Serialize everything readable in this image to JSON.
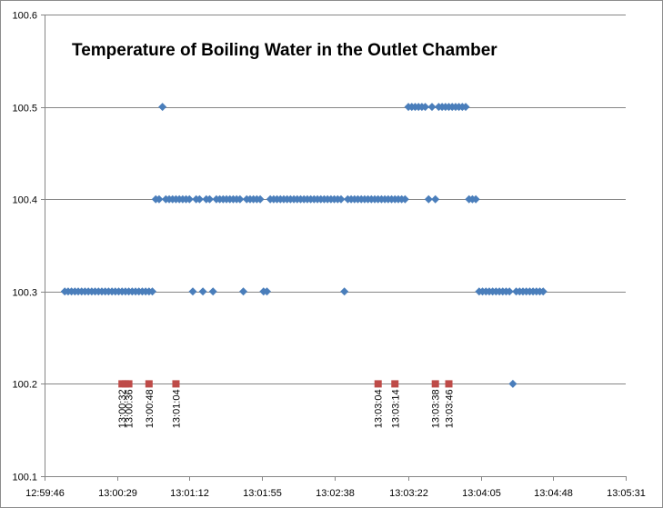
{
  "chart_data": {
    "type": "scatter",
    "title": "Temperature of Boiling Water in the Outlet Chamber",
    "xlabel": "",
    "ylabel": "",
    "x_axis_type": "time",
    "xlim": [
      "12:59:46",
      "13:05:31"
    ],
    "ylim": [
      100.1,
      100.6
    ],
    "x_tick_labels": [
      "12:59:46",
      "13:00:29",
      "13:01:12",
      "13:01:55",
      "13:02:38",
      "13:03:22",
      "13:04:05",
      "13:04:48",
      "13:05:31"
    ],
    "y_tick_labels": [
      "100.1",
      "100.2",
      "100.3",
      "100.4",
      "100.5",
      "100.6"
    ],
    "gridlines": "horizontal",
    "legend": "none",
    "colors": {
      "temperature": "#4a7ebb",
      "event": "#be4b48",
      "grid": "#868686"
    },
    "series": [
      {
        "marker": "diamond",
        "color": "#4a7ebb",
        "points": [
          [
            "12:59:58",
            100.3
          ],
          [
            "13:00:00",
            100.3
          ],
          [
            "13:00:02",
            100.3
          ],
          [
            "13:00:04",
            100.3
          ],
          [
            "13:00:06",
            100.3
          ],
          [
            "13:00:08",
            100.3
          ],
          [
            "13:00:10",
            100.3
          ],
          [
            "13:00:12",
            100.3
          ],
          [
            "13:00:14",
            100.3
          ],
          [
            "13:00:16",
            100.3
          ],
          [
            "13:00:18",
            100.3
          ],
          [
            "13:00:20",
            100.3
          ],
          [
            "13:00:22",
            100.3
          ],
          [
            "13:00:24",
            100.3
          ],
          [
            "13:00:26",
            100.3
          ],
          [
            "13:00:28",
            100.3
          ],
          [
            "13:00:30",
            100.3
          ],
          [
            "13:00:32",
            100.3
          ],
          [
            "13:00:34",
            100.3
          ],
          [
            "13:00:36",
            100.3
          ],
          [
            "13:00:38",
            100.3
          ],
          [
            "13:00:40",
            100.3
          ],
          [
            "13:00:42",
            100.3
          ],
          [
            "13:00:44",
            100.3
          ],
          [
            "13:00:46",
            100.3
          ],
          [
            "13:00:48",
            100.3
          ],
          [
            "13:00:50",
            100.3
          ],
          [
            "13:00:52",
            100.4
          ],
          [
            "13:00:54",
            100.4
          ],
          [
            "13:00:56",
            100.5
          ],
          [
            "13:00:58",
            100.4
          ],
          [
            "13:01:00",
            100.4
          ],
          [
            "13:01:02",
            100.4
          ],
          [
            "13:01:04",
            100.4
          ],
          [
            "13:01:06",
            100.4
          ],
          [
            "13:01:08",
            100.4
          ],
          [
            "13:01:10",
            100.4
          ],
          [
            "13:01:12",
            100.4
          ],
          [
            "13:01:14",
            100.3
          ],
          [
            "13:01:16",
            100.4
          ],
          [
            "13:01:18",
            100.4
          ],
          [
            "13:01:20",
            100.3
          ],
          [
            "13:01:22",
            100.4
          ],
          [
            "13:01:24",
            100.4
          ],
          [
            "13:01:26",
            100.3
          ],
          [
            "13:01:28",
            100.4
          ],
          [
            "13:01:30",
            100.4
          ],
          [
            "13:01:32",
            100.4
          ],
          [
            "13:01:34",
            100.4
          ],
          [
            "13:01:36",
            100.4
          ],
          [
            "13:01:38",
            100.4
          ],
          [
            "13:01:40",
            100.4
          ],
          [
            "13:01:42",
            100.4
          ],
          [
            "13:01:44",
            100.3
          ],
          [
            "13:01:46",
            100.4
          ],
          [
            "13:01:48",
            100.4
          ],
          [
            "13:01:50",
            100.4
          ],
          [
            "13:01:52",
            100.4
          ],
          [
            "13:01:54",
            100.4
          ],
          [
            "13:01:56",
            100.3
          ],
          [
            "13:01:58",
            100.3
          ],
          [
            "13:02:00",
            100.4
          ],
          [
            "13:02:02",
            100.4
          ],
          [
            "13:02:04",
            100.4
          ],
          [
            "13:02:06",
            100.4
          ],
          [
            "13:02:08",
            100.4
          ],
          [
            "13:02:10",
            100.4
          ],
          [
            "13:02:12",
            100.4
          ],
          [
            "13:02:14",
            100.4
          ],
          [
            "13:02:16",
            100.4
          ],
          [
            "13:02:18",
            100.4
          ],
          [
            "13:02:20",
            100.4
          ],
          [
            "13:02:22",
            100.4
          ],
          [
            "13:02:24",
            100.4
          ],
          [
            "13:02:26",
            100.4
          ],
          [
            "13:02:28",
            100.4
          ],
          [
            "13:02:30",
            100.4
          ],
          [
            "13:02:32",
            100.4
          ],
          [
            "13:02:34",
            100.4
          ],
          [
            "13:02:36",
            100.4
          ],
          [
            "13:02:38",
            100.4
          ],
          [
            "13:02:40",
            100.4
          ],
          [
            "13:02:42",
            100.4
          ],
          [
            "13:02:44",
            100.3
          ],
          [
            "13:02:46",
            100.4
          ],
          [
            "13:02:48",
            100.4
          ],
          [
            "13:02:50",
            100.4
          ],
          [
            "13:02:52",
            100.4
          ],
          [
            "13:02:54",
            100.4
          ],
          [
            "13:02:56",
            100.4
          ],
          [
            "13:02:58",
            100.4
          ],
          [
            "13:03:00",
            100.4
          ],
          [
            "13:03:02",
            100.4
          ],
          [
            "13:03:04",
            100.4
          ],
          [
            "13:03:06",
            100.4
          ],
          [
            "13:03:08",
            100.4
          ],
          [
            "13:03:10",
            100.4
          ],
          [
            "13:03:12",
            100.4
          ],
          [
            "13:03:14",
            100.4
          ],
          [
            "13:03:16",
            100.4
          ],
          [
            "13:03:18",
            100.4
          ],
          [
            "13:03:20",
            100.4
          ],
          [
            "13:03:22",
            100.5
          ],
          [
            "13:03:24",
            100.5
          ],
          [
            "13:03:26",
            100.5
          ],
          [
            "13:03:28",
            100.5
          ],
          [
            "13:03:30",
            100.5
          ],
          [
            "13:03:32",
            100.5
          ],
          [
            "13:03:34",
            100.4
          ],
          [
            "13:03:36",
            100.5
          ],
          [
            "13:03:38",
            100.4
          ],
          [
            "13:03:40",
            100.5
          ],
          [
            "13:03:42",
            100.5
          ],
          [
            "13:03:44",
            100.5
          ],
          [
            "13:03:46",
            100.5
          ],
          [
            "13:03:48",
            100.5
          ],
          [
            "13:03:50",
            100.5
          ],
          [
            "13:03:52",
            100.5
          ],
          [
            "13:03:54",
            100.5
          ],
          [
            "13:03:56",
            100.5
          ],
          [
            "13:03:58",
            100.4
          ],
          [
            "13:04:00",
            100.4
          ],
          [
            "13:04:02",
            100.4
          ],
          [
            "13:04:04",
            100.3
          ],
          [
            "13:04:06",
            100.3
          ],
          [
            "13:04:08",
            100.3
          ],
          [
            "13:04:10",
            100.3
          ],
          [
            "13:04:12",
            100.3
          ],
          [
            "13:04:14",
            100.3
          ],
          [
            "13:04:16",
            100.3
          ],
          [
            "13:04:18",
            100.3
          ],
          [
            "13:04:20",
            100.3
          ],
          [
            "13:04:22",
            100.3
          ],
          [
            "13:04:24",
            100.2
          ],
          [
            "13:04:26",
            100.3
          ],
          [
            "13:04:28",
            100.3
          ],
          [
            "13:04:30",
            100.3
          ],
          [
            "13:04:32",
            100.3
          ],
          [
            "13:04:34",
            100.3
          ],
          [
            "13:04:36",
            100.3
          ],
          [
            "13:04:38",
            100.3
          ],
          [
            "13:04:40",
            100.3
          ],
          [
            "13:04:42",
            100.3
          ]
        ]
      },
      {
        "marker": "square",
        "color": "#be4b48",
        "points": [
          [
            "13:00:32",
            100.2
          ],
          [
            "13:00:34",
            100.2
          ],
          [
            "13:00:36",
            100.2
          ],
          [
            "13:00:48",
            100.2
          ],
          [
            "13:01:04",
            100.2
          ],
          [
            "13:03:04",
            100.2
          ],
          [
            "13:03:14",
            100.2
          ],
          [
            "13:03:38",
            100.2
          ],
          [
            "13:03:46",
            100.2
          ]
        ],
        "labels": [
          "13:00:32",
          "13:00:36",
          "13:00:48",
          "13:01:04",
          "13:03:04",
          "13:03:14",
          "13:03:38",
          "13:03:46"
        ]
      }
    ]
  }
}
